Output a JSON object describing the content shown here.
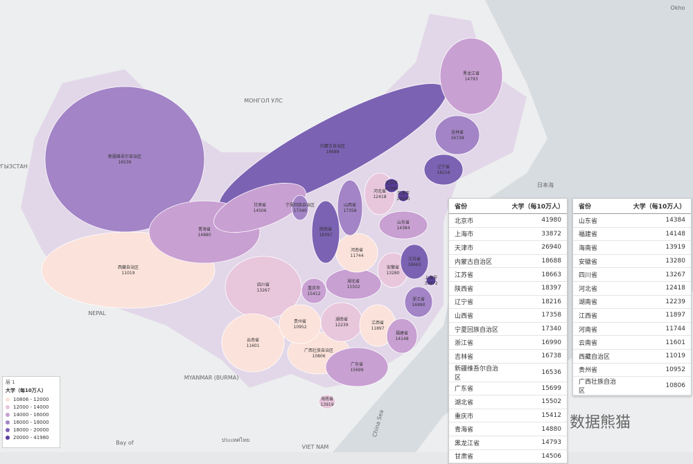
{
  "map_labels": [
    "МОНГОЛ УЛС",
    "NEPAL",
    "MYANMAR (BURMA)",
    "日本海",
    "Okho",
    "China Sea",
    "Bay of",
    "VIET NAM",
    "ประเทศไทย",
    "РГЫЗСТАН"
  ],
  "legend": {
    "layer": "层 1",
    "title": "大学（每10万人）",
    "items": [
      {
        "label": "10806 - 12000",
        "color": "#fbe2da"
      },
      {
        "label": "12000 - 14000",
        "color": "#e8c6dc"
      },
      {
        "label": "14000 - 16000",
        "color": "#c8a0d2"
      },
      {
        "label": "16000 - 18000",
        "color": "#a384c6"
      },
      {
        "label": "18000 - 20000",
        "color": "#7c62b3"
      },
      {
        "label": "20000 - 41980",
        "color": "#5a3e9a"
      }
    ]
  },
  "tables": [
    {
      "headers": [
        "省份",
        "大学（每10万人）"
      ],
      "rows": [
        [
          "北京市",
          41980
        ],
        [
          "上海市",
          33872
        ],
        [
          "天津市",
          26940
        ],
        [
          "内蒙古自治区",
          18688
        ],
        [
          "江苏省",
          18663
        ],
        [
          "陕西省",
          18397
        ],
        [
          "辽宁省",
          18216
        ],
        [
          "山西省",
          17358
        ],
        [
          "宁夏回族自治区",
          17340
        ],
        [
          "浙江省",
          16990
        ],
        [
          "吉林省",
          16738
        ],
        [
          "新疆维吾尔自治区",
          16536
        ],
        [
          "广东省",
          15699
        ],
        [
          "湖北省",
          15502
        ],
        [
          "重庆市",
          15412
        ],
        [
          "青海省",
          14880
        ],
        [
          "黑龙江省",
          14793
        ],
        [
          "甘肃省",
          14506
        ]
      ]
    },
    {
      "headers": [
        "省份",
        "大学（每10万人）"
      ],
      "rows": [
        [
          "山东省",
          14384
        ],
        [
          "福建省",
          14148
        ],
        [
          "海南省",
          13919
        ],
        [
          "安徽省",
          13280
        ],
        [
          "四川省",
          13267
        ],
        [
          "河北省",
          12418
        ],
        [
          "湖南省",
          12239
        ],
        [
          "江西省",
          11897
        ],
        [
          "河南省",
          11744
        ],
        [
          "云南省",
          11601
        ],
        [
          "西藏自治区",
          11019
        ],
        [
          "贵州省",
          10952
        ],
        [
          "广西壮族自治区",
          10806
        ]
      ]
    }
  ],
  "watermark": "数据熊猫"
}
